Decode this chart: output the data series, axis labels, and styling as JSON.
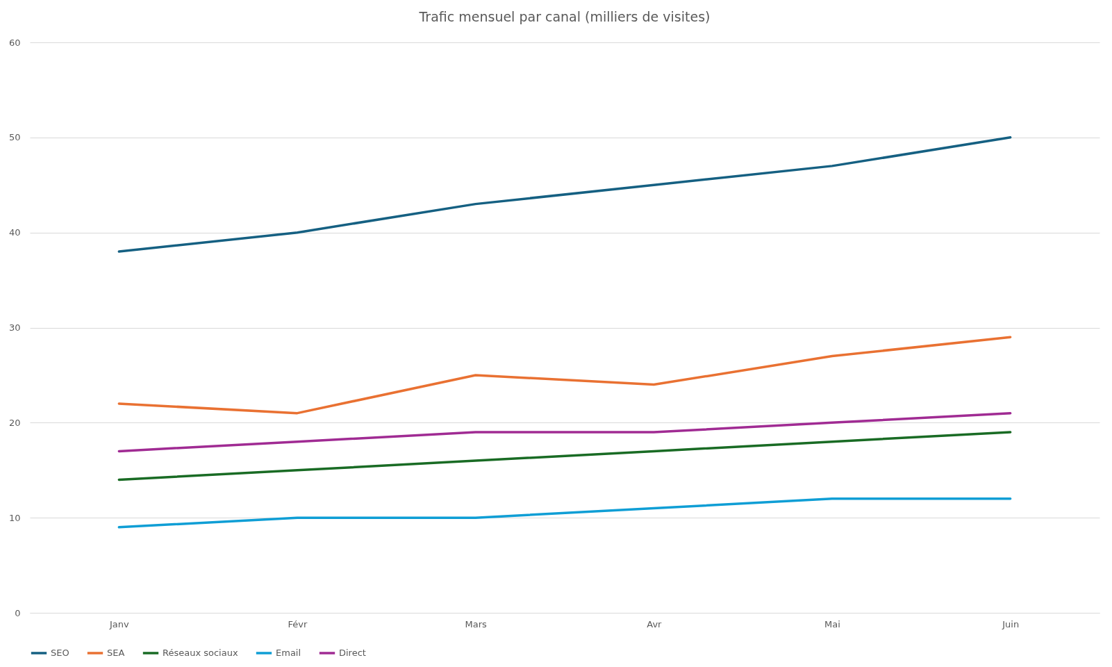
{
  "chart_data": {
    "type": "line",
    "title": "Trafic  mensuel par canal (milliers de visites)",
    "categories": [
      "Janv",
      "Févr",
      "Mars",
      "Avr",
      "Mai",
      "Juin"
    ],
    "series": [
      {
        "name": "SEO",
        "color": "#156082",
        "values": [
          38,
          40,
          43,
          45,
          47,
          50
        ]
      },
      {
        "name": "SEA",
        "color": "#e97132",
        "values": [
          22,
          21,
          25,
          24,
          27,
          29
        ]
      },
      {
        "name": "Réseaux sociaux",
        "color": "#196b24",
        "values": [
          14,
          15,
          16,
          17,
          18,
          19
        ]
      },
      {
        "name": "Email",
        "color": "#0f9ed5",
        "values": [
          9,
          10,
          10,
          11,
          12,
          12
        ]
      },
      {
        "name": "Direct",
        "color": "#a02b93",
        "values": [
          17,
          18,
          19,
          19,
          20,
          21
        ]
      }
    ],
    "ylim": [
      0,
      60
    ],
    "yticks": [
      0,
      10,
      20,
      30,
      40,
      50,
      60
    ],
    "grid": "y",
    "legend": "bottom",
    "line_style": "solid"
  }
}
